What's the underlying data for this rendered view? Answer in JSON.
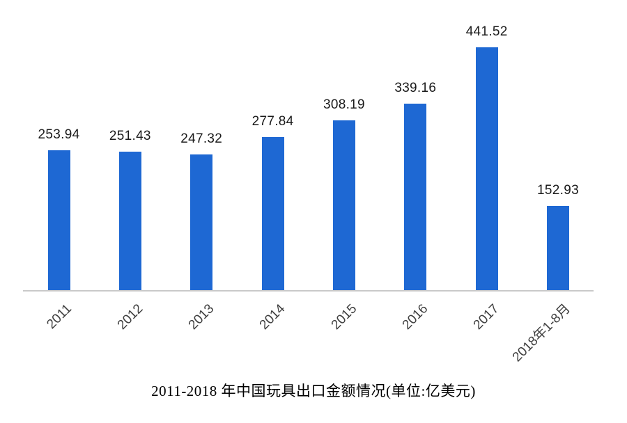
{
  "page": {
    "background_color": "#ffffff"
  },
  "chart_data": {
    "type": "bar",
    "title": "2011-2018 年中国玩具出口金额情况(单位:亿美元)",
    "categories": [
      "2011",
      "2012",
      "2013",
      "2014",
      "2015",
      "2016",
      "2017",
      "2018年1-8月"
    ],
    "values": [
      253.94,
      251.43,
      247.32,
      277.84,
      308.19,
      339.16,
      441.52,
      152.93
    ],
    "series_name": "中国玩具出口金额",
    "xlabel": "",
    "ylabel": "",
    "ylim": [
      0,
      441.52
    ],
    "grid": false,
    "legend": false,
    "data_labels": true,
    "bar_color": "#1E68D3",
    "axis_line_color": "#C9C9C9",
    "value_label_color": "#1a1a1a",
    "tick_label_color": "#3f3f3f",
    "title_color": "#000000",
    "tick_label_rotation_deg": 45
  }
}
